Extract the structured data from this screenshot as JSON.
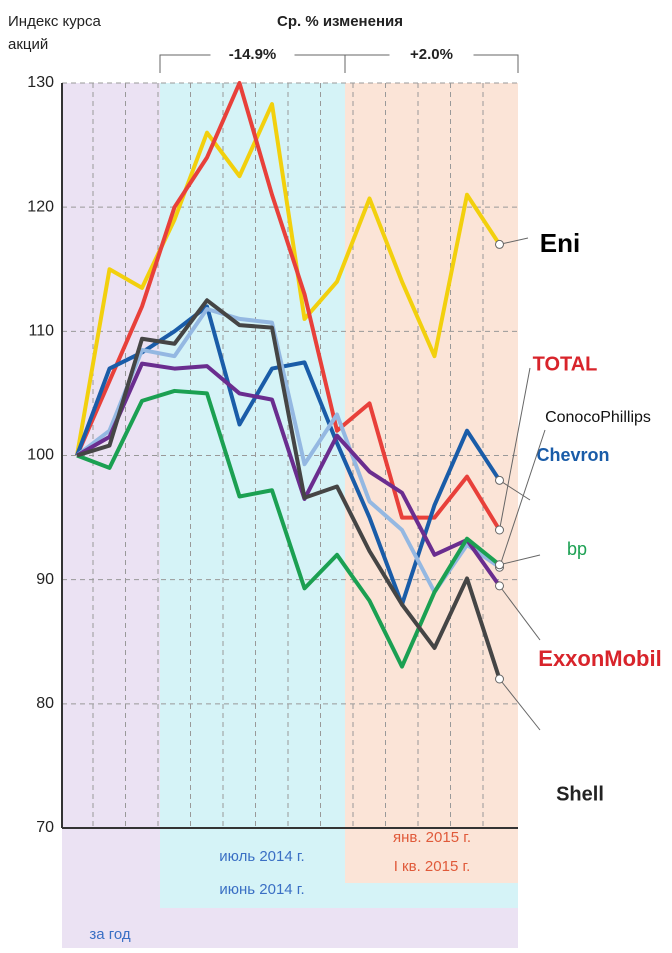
{
  "chart_data": {
    "type": "line",
    "title": "Ср. % изменения",
    "y_label": [
      "Индекс курса",
      "акций"
    ],
    "ylim": [
      70,
      130
    ],
    "yticks": [
      70,
      80,
      90,
      100,
      110,
      120,
      130
    ],
    "grid": true,
    "periods": [
      {
        "change": "-14.9%",
        "labels": [
          "июль 2014 г.",
          "июнь 2014 г."
        ]
      },
      {
        "change": "+2.0%",
        "labels": [
          "янв. 2015 г.",
          "I кв. 2015 г."
        ]
      }
    ],
    "year_label": "за год",
    "series": [
      {
        "name": "Eni",
        "color": "#f2d00d",
        "values": [
          100,
          115,
          113.5,
          119,
          126,
          122.5,
          128.3,
          111,
          114,
          120.7,
          114,
          108,
          121,
          117
        ]
      },
      {
        "name": "TOTAL",
        "color": "#e8403a",
        "values": [
          100,
          106,
          112,
          120,
          124,
          130,
          121,
          113,
          102,
          104.2,
          95,
          95,
          98.3,
          94
        ]
      },
      {
        "name": "Chevron",
        "color": "#1a5ca8",
        "values": [
          100,
          107,
          108.3,
          110,
          112,
          102.5,
          107,
          107.5,
          101,
          95,
          88,
          96,
          102,
          98
        ]
      },
      {
        "name": "ConocoPhillips",
        "color": "#94b8e2",
        "values": [
          100,
          102,
          108.5,
          108,
          111.8,
          111,
          110.7,
          99.3,
          103.3,
          96.3,
          94,
          89,
          92.8,
          91
        ]
      },
      {
        "name": "ExxonMobil",
        "color": "#6a2d8f",
        "values": [
          100,
          101.5,
          107.4,
          107,
          107.2,
          105,
          104.5,
          96.5,
          101.6,
          98.7,
          97,
          92,
          93.2,
          89.5
        ]
      },
      {
        "name": "bp",
        "color": "#1ba052",
        "values": [
          100,
          99,
          104.4,
          105.2,
          105,
          96.7,
          97.2,
          89.3,
          92,
          88.3,
          83,
          89,
          93.3,
          91.2
        ]
      },
      {
        "name": "Shell",
        "color": "#454545",
        "values": [
          100,
          100.8,
          109.4,
          109,
          112.5,
          110.5,
          110.3,
          96.6,
          97.5,
          92.3,
          88,
          84.5,
          90.1,
          82
        ]
      }
    ]
  }
}
